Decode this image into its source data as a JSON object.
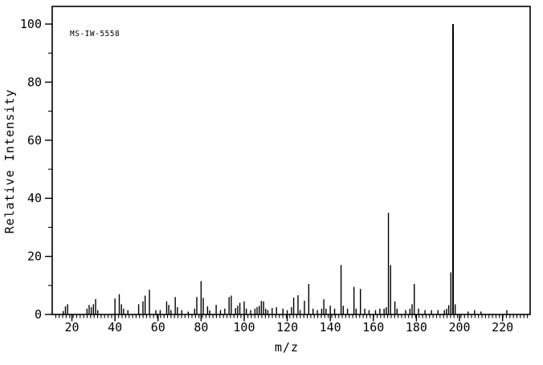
{
  "colors": {
    "background": "#ffffff",
    "foreground": "#000000"
  },
  "chart_data": {
    "type": "bar",
    "subtype": "mass-spectrum-sticks",
    "annotation": "MS-IW-5558",
    "xlabel": "m/z",
    "ylabel": "Relative Intensity",
    "xlim": [
      11,
      233
    ],
    "ylim": [
      0,
      106
    ],
    "grid": false,
    "legend": false,
    "x_ticks_major": [
      20,
      40,
      60,
      80,
      100,
      120,
      140,
      160,
      180,
      200,
      220
    ],
    "y_ticks_major": [
      0,
      20,
      40,
      60,
      80,
      100
    ],
    "y_ticks_minor": [
      10,
      30,
      50,
      70,
      90
    ],
    "base_peak": {
      "mz": 197,
      "intensity": 100
    },
    "points": [
      [
        16,
        1.2
      ],
      [
        17,
        2.8
      ],
      [
        18,
        3.5
      ],
      [
        27,
        2
      ],
      [
        28,
        3.3
      ],
      [
        29,
        2.5
      ],
      [
        30,
        3.5
      ],
      [
        31,
        5.3
      ],
      [
        32,
        1.5
      ],
      [
        40,
        5.5
      ],
      [
        42,
        7
      ],
      [
        43,
        3.5
      ],
      [
        44,
        2
      ],
      [
        46,
        1.5
      ],
      [
        51,
        3.5
      ],
      [
        53,
        4.5
      ],
      [
        54,
        6.5
      ],
      [
        56,
        8.5
      ],
      [
        59,
        1.5
      ],
      [
        61,
        1.5
      ],
      [
        64,
        4.5
      ],
      [
        65,
        3.3
      ],
      [
        66,
        1.5
      ],
      [
        68,
        6
      ],
      [
        69,
        2.5
      ],
      [
        71,
        1.5
      ],
      [
        74,
        1
      ],
      [
        77,
        2
      ],
      [
        78,
        6
      ],
      [
        80,
        11.5
      ],
      [
        81,
        5.7
      ],
      [
        83,
        2.8
      ],
      [
        84,
        1.4
      ],
      [
        87,
        3.3
      ],
      [
        89,
        1.5
      ],
      [
        91,
        2
      ],
      [
        93,
        6
      ],
      [
        94,
        6.5
      ],
      [
        96,
        2.2
      ],
      [
        97,
        3
      ],
      [
        98,
        4
      ],
      [
        100,
        4.5
      ],
      [
        101,
        2
      ],
      [
        103,
        1.5
      ],
      [
        105,
        2
      ],
      [
        106,
        2.5
      ],
      [
        107,
        3
      ],
      [
        108,
        4.7
      ],
      [
        109,
        4.5
      ],
      [
        110,
        2
      ],
      [
        111,
        1.5
      ],
      [
        113,
        2.2
      ],
      [
        115,
        2.5
      ],
      [
        118,
        2
      ],
      [
        120,
        1.5
      ],
      [
        122,
        2.5
      ],
      [
        123,
        5.8
      ],
      [
        125,
        6.6
      ],
      [
        126,
        1.5
      ],
      [
        128,
        4.7
      ],
      [
        130,
        10.5
      ],
      [
        132,
        2
      ],
      [
        134,
        1.5
      ],
      [
        136,
        2
      ],
      [
        137,
        5.2
      ],
      [
        138,
        2
      ],
      [
        140,
        3
      ],
      [
        142,
        2
      ],
      [
        145,
        17
      ],
      [
        146,
        3
      ],
      [
        148,
        2
      ],
      [
        151,
        9.5
      ],
      [
        152,
        2
      ],
      [
        154,
        8.8
      ],
      [
        156,
        2
      ],
      [
        158,
        1.5
      ],
      [
        161,
        1.5
      ],
      [
        163,
        2
      ],
      [
        165,
        2
      ],
      [
        166,
        2.5
      ],
      [
        167,
        35
      ],
      [
        168,
        17
      ],
      [
        170,
        4.5
      ],
      [
        171,
        2
      ],
      [
        175,
        1.5
      ],
      [
        177,
        2
      ],
      [
        178,
        3.5
      ],
      [
        179,
        10.5
      ],
      [
        181,
        2
      ],
      [
        184,
        1.5
      ],
      [
        187,
        1.5
      ],
      [
        190,
        1.5
      ],
      [
        193,
        1.5
      ],
      [
        194,
        2
      ],
      [
        195,
        3.2
      ],
      [
        196,
        14.5
      ],
      [
        197,
        100
      ],
      [
        198,
        3.5
      ],
      [
        204,
        1
      ],
      [
        207,
        1.5
      ],
      [
        210,
        1
      ],
      [
        222,
        1.5
      ]
    ]
  }
}
